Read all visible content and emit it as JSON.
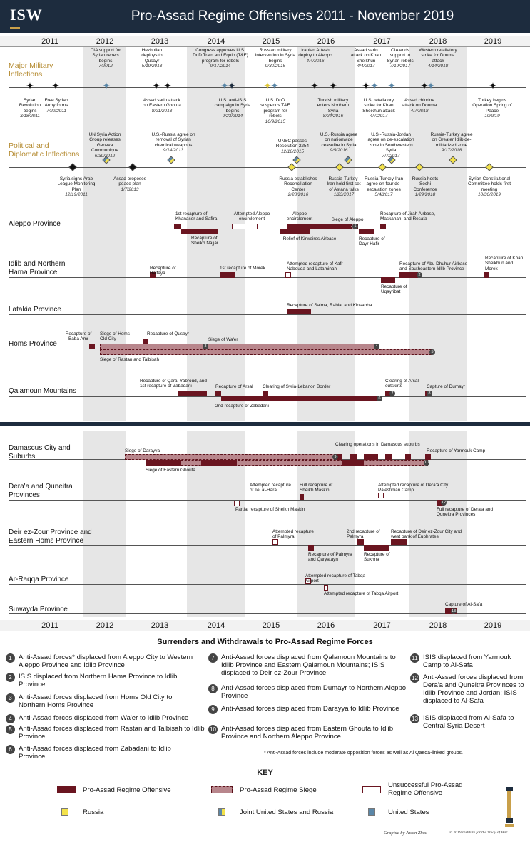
{
  "header": {
    "logo": "ISW",
    "title": "Pro-Assad Regime Offensives 2011 - November 2019"
  },
  "years": [
    "2011",
    "2012",
    "2013",
    "2014",
    "2015",
    "2016",
    "2017",
    "2018",
    "2019"
  ],
  "sections": {
    "military": "Major Military Inflections",
    "political": "Political and Diplomatic Inflections"
  },
  "military_above": [
    {
      "text": "CIA support for Syrian rebels begins",
      "date": "7/2012"
    },
    {
      "text": "Hezbollah deploys to Qusayr",
      "date": "5/19/2013"
    },
    {
      "text": "Congress approves U.S. DoD Train and Equip (T&E) program for rebels",
      "date": "9/17/2014"
    },
    {
      "text": "Russian military intervention in Syria begins",
      "date": "9/30/2015"
    },
    {
      "text": "Iranian Artesh deploy to Aleppo",
      "date": "4/4/2016"
    },
    {
      "text": "Assad sarin attack on Khan Sheikhun",
      "date": "4/4/2017"
    },
    {
      "text": "CIA ends support to Syrian rebels",
      "date": "7/19/2017"
    },
    {
      "text": "Western retaliatory strike for Douma attack",
      "date": "4/14/2018"
    }
  ],
  "military_below": [
    {
      "text": "Syrian Revolution begins",
      "date": "3/18/2011"
    },
    {
      "text": "Free Syrian Army forms",
      "date": "7/29/2011"
    },
    {
      "text": "Assad sarin attack on Eastern Ghouta",
      "date": "8/21/2013"
    },
    {
      "text": "U.S. anti-ISIS campaign in Syria begins",
      "date": "9/23/2014"
    },
    {
      "text": "U.S. DoD suspends T&E program for rebels",
      "date": "10/9/2015"
    },
    {
      "text": "Turkish military enters Northern Syria",
      "date": "8/24/2016"
    },
    {
      "text": "U.S. retaliatory strike for Khan Sheikhun attack",
      "date": "4/7/2017"
    },
    {
      "text": "Assad chlorine attack on Douma",
      "date": "4/7/2018"
    },
    {
      "text": "Turkey begins Operation Spring of Peace",
      "date": "10/9/19"
    }
  ],
  "political_above": [
    {
      "text": "UN Syria Action Group releases Geneva Communique",
      "date": "6/30/2012"
    },
    {
      "text": "U.S.-Russia agree on removal of Syrian chemical weapons",
      "date": "9/14/2013"
    },
    {
      "text": "UNSC passes Resolution 2254",
      "date": "12/18/2015"
    },
    {
      "text": "U.S.-Russia agree on nationwide ceasefire in Syria",
      "date": "9/9/2016"
    },
    {
      "text": "U.S.-Russia-Jordan agree on de-escalation zone in Southwestern Syria",
      "date": "7/7/2017"
    },
    {
      "text": "Russia-Turkey agree on Greater Idlib de-militarized zone",
      "date": "9/17/2018"
    }
  ],
  "political_below": [
    {
      "text": "Syria signs Arab League Monitoring Plan",
      "date": "12/19/2011"
    },
    {
      "text": "Assad proposes peace plan",
      "date": "1/7/2013"
    },
    {
      "text": "Russia establishes Reconciliation Center",
      "date": "2/28/2016"
    },
    {
      "text": "Russia-Turkey-Iran hold first set of Astana talks",
      "date": "1/23/2017"
    },
    {
      "text": "Russia-Turkey-Iran agree on four de-escalation zones",
      "date": "5/4/2017"
    },
    {
      "text": "Russia hosts Sochi Conference",
      "date": "1/29/2018"
    },
    {
      "text": "Syrian Constitutional Committee holds first meeting",
      "date": "10/30/2019"
    }
  ],
  "provinces": [
    {
      "name": "Aleppo Province",
      "events": [
        "1st recapture of Khanaser and Safira",
        "Attempted Aleppo encirclement",
        "Aleppo encirclement",
        "Siege of Aleppo",
        "Recapture of Jirah Airbase, Maskanah, and Resafa",
        "Recapture of Sheikh Najjar",
        "Relief of Kirweires Airbase",
        "Recapture of Dayr Hafir"
      ]
    },
    {
      "name": "Idlib and Northern Hama Province",
      "events": [
        "Recapture of Halfaya",
        "1st recapture of Morek",
        "Attempted recapture of Kafr Nabouda and Lataminah",
        "Recapture of Abu Dhuhur Airbase and Southeastern Idlib Province",
        "Recapture of Khan Sheikhun and Morek",
        "Recapture of Uqayribat"
      ]
    },
    {
      "name": "Latakia Province",
      "events": [
        "Recapture of Salma, Rabia, and Kinsabba"
      ]
    },
    {
      "name": "Homs Province",
      "events": [
        "Recapture of Baba Amr",
        "Siege of Homs Old City",
        "Recapture of Qusayr",
        "Siege of Wa'er",
        "Siege of Rastan and Talbisah"
      ]
    },
    {
      "name": "Qalamoun Mountains",
      "events": [
        "Recapture of Qara, Yabroud, and 1st recapture of Zabadani",
        "Recapture of Arsal",
        "Clearing of Syria-Lebanon Border",
        "Clearing of Arsal outskirts",
        "Capture of Dumayr",
        "2nd recapture of Zabadani"
      ]
    },
    {
      "name": "Damascus City and Suburbs",
      "events": [
        "Siege of Darayya",
        "Clearing operations in Damascus suburbs",
        "Recapture of Yarmouk Camp",
        "Siege of Eastern Ghouta"
      ]
    },
    {
      "name": "Dera'a and Quneitra Provinces",
      "events": [
        "Attempted recapture of Tel al-Hara",
        "Full recapture of Sheikh Maskin",
        "Attempted recapture of Dera'a City Palestinian Camp",
        "Partial recapture of Sheikh Maskin",
        "Full recapture of Dera'a and Quneitra Provinces"
      ]
    },
    {
      "name": "Deir ez-Zour Province and Eastern Homs Province",
      "events": [
        "Attempted recapture of Palmyra",
        "2nd recapture of Palmyra",
        "Recapture of Deir ez-Zour City and west bank of Euphrates",
        "Recapture of Palmyra and Qaryatayn",
        "Recapture of Sukhna"
      ]
    },
    {
      "name": "Ar-Raqqa Province",
      "events": [
        "Attempted recapture of Tabqa Airport",
        "Attempted recapture of Tabqa Airport"
      ]
    },
    {
      "name": "Suwayda Province",
      "events": [
        "Capture of Al-Safa"
      ]
    }
  ],
  "surrenders": {
    "title": "Surrenders and Withdrawals to Pro-Assad Regime Forces",
    "items": [
      "Anti-Assad forces* displaced from Aleppo City to Western Aleppo Province and Idlib Province",
      "ISIS displaced from Northern Hama Province to Idlib Province",
      "Anti-Assad forces displaced from Homs Old City to Northern Homs Province",
      "Anti-Assad forces displaced from Wa'er to Idlib Province",
      "Anti-Assad forces displaced from Rastan and Talbisah to Idlib Province",
      "Anti-Assad forces displaced from Zabadani to Idlib Province",
      "Anti-Assad forces displaced from Qalamoun Mountains to Idlib Province and Eastern Qalamoun Mountains; ISIS displaced to Deir ez-Zour Province",
      "Anti-Assad forces displaced from Dumayr to Northern Aleppo Province",
      "Anti-Assad forces displaced from Darayya to Idlib Province",
      "Anti-Assad forces displaced from Eastern Ghouta to Idlib Province and Northern Aleppo Province",
      "ISIS displaced from Yarmouk Camp to Al-Safa",
      "Anti-Assad forces displaced from Dera'a and Quneitra Provinces to Idlib Province and Jordan; ISIS displaced to Al-Safa",
      "ISIS displaced from Al-Safa to Central Syria Desert"
    ],
    "footnote": "* Anti-Assad forces include moderate opposition forces as well as Al Qaeda-linked groups."
  },
  "key": {
    "title": "KEY",
    "offensive": "Pro-Assad Regime Offensive",
    "siege": "Pro-Assad Regime Siege",
    "unsuccessful": "Unsuccessful Pro-Assad Regime Offensive",
    "russia": "Russia",
    "joint": "Joint United States and Russia",
    "us": "United States"
  },
  "credit": {
    "graphic": "Graphic by Jason Zhou",
    "copyright": "© 2019 Institute for the Study of War"
  },
  "colors": {
    "navy": "#1d2c3e",
    "maroon": "#6a1520",
    "siege": "#b8868c",
    "gold": "#b48a2f",
    "russia": "#f3e24a",
    "us": "#5a87a8"
  }
}
